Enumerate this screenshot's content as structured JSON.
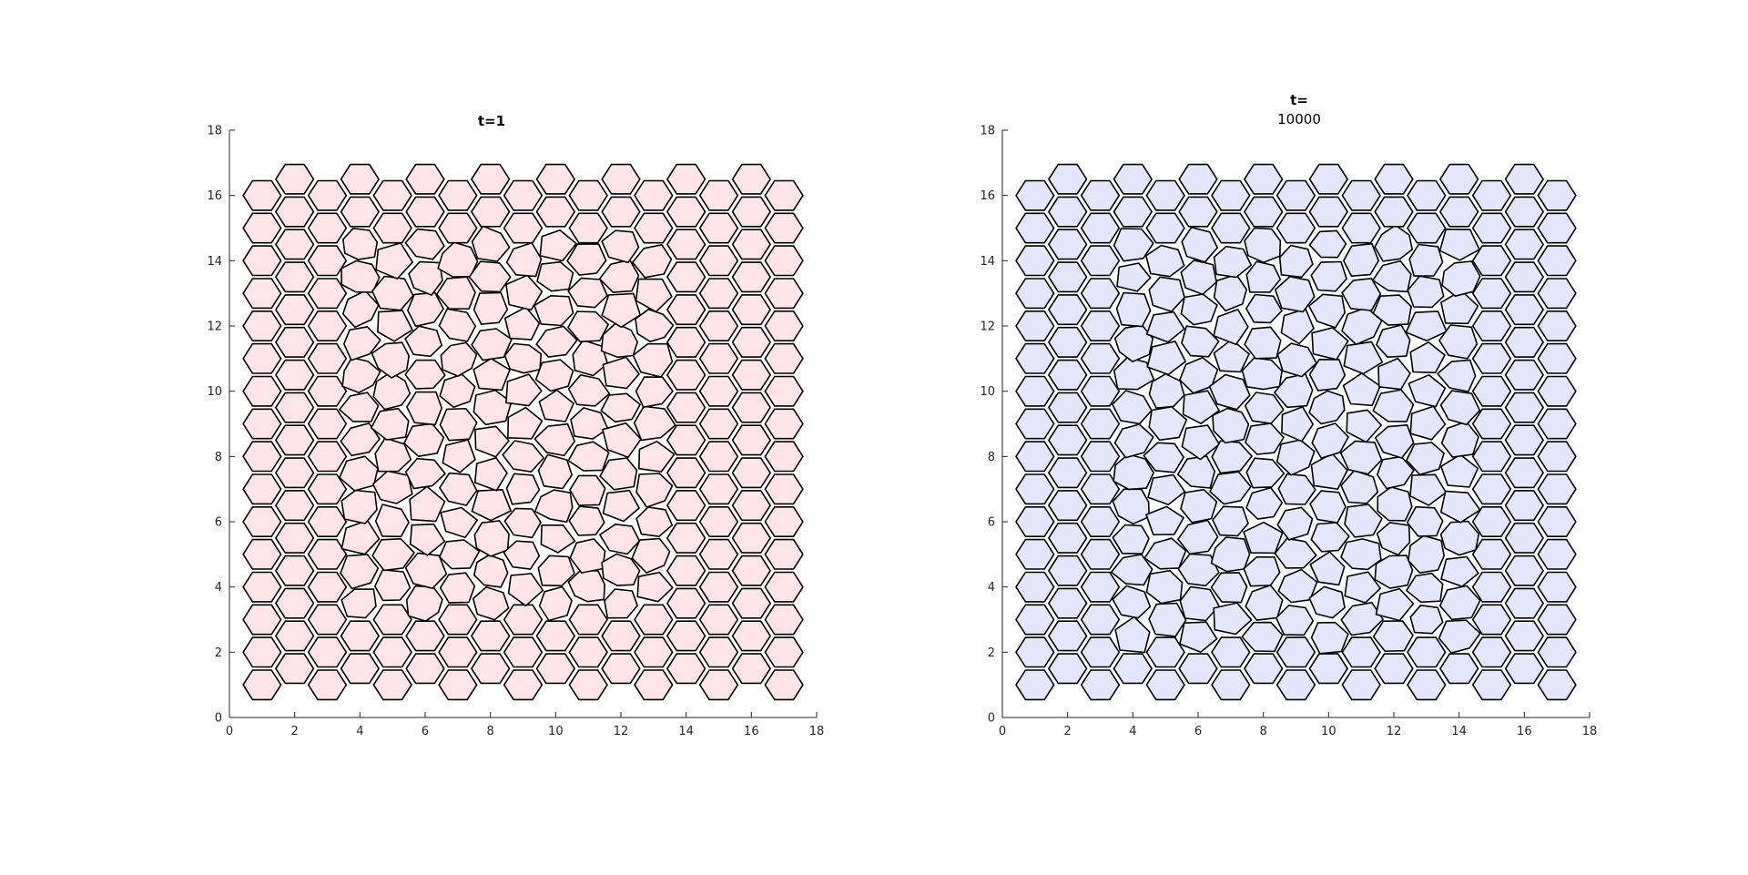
{
  "chart_data": [
    {
      "type": "other",
      "description_type": "vertex-model cell tissue (polygon tiling)",
      "title": "t=1",
      "xlim": [
        0,
        18
      ],
      "ylim": [
        0,
        18
      ],
      "xticks": [
        0,
        2,
        4,
        6,
        8,
        10,
        12,
        14,
        16,
        18
      ],
      "yticks": [
        0,
        2,
        4,
        6,
        8,
        10,
        12,
        14,
        16,
        18
      ],
      "grid": false,
      "cell_fill": "#ffe5ea",
      "edge_color": "#000000",
      "lattice": {
        "columns": 17,
        "rows": 16,
        "x_start": 1.0,
        "x_step": 1.0,
        "y_start": 1.0,
        "y_step": 1.0,
        "hex_radius": 0.58
      },
      "boundary_hexagonal_cells": true,
      "interior_disordered_region": {
        "x": [
          3,
          14
        ],
        "y": [
          3,
          15
        ]
      }
    },
    {
      "type": "other",
      "description_type": "vertex-model cell tissue (polygon tiling)",
      "title_lines": [
        "t=",
        "10000"
      ],
      "xlim": [
        0,
        18
      ],
      "ylim": [
        0,
        18
      ],
      "xticks": [
        0,
        2,
        4,
        6,
        8,
        10,
        12,
        14,
        16,
        18
      ],
      "yticks": [
        0,
        2,
        4,
        6,
        8,
        10,
        12,
        14,
        16,
        18
      ],
      "grid": false,
      "cell_fill": "#e5e5fc",
      "edge_color": "#000000",
      "lattice": {
        "columns": 17,
        "rows": 16,
        "x_start": 1.0,
        "x_step": 1.0,
        "y_start": 1.0,
        "y_step": 1.0,
        "hex_radius": 0.58
      },
      "boundary_hexagonal_cells": true,
      "interior_disordered_region": {
        "x": [
          3,
          15
        ],
        "y": [
          2,
          15
        ]
      }
    }
  ]
}
